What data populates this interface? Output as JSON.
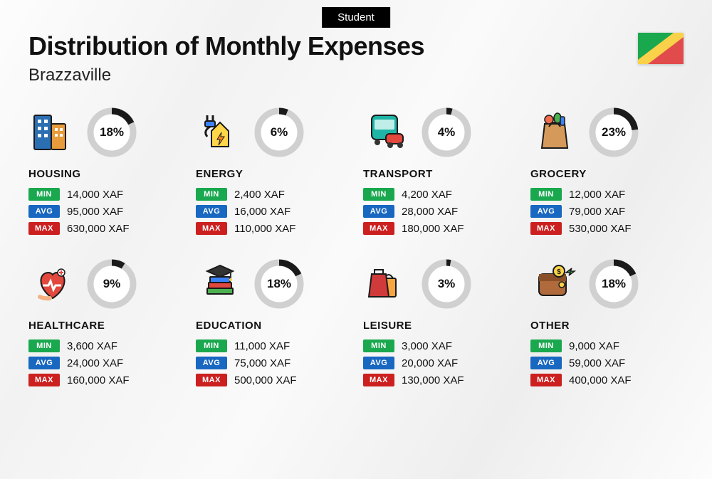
{
  "badge": "Student",
  "title": "Distribution of Monthly Expenses",
  "subtitle": "Brazzaville",
  "currency": "XAF",
  "flag": {
    "green": "#1aa84f",
    "yellow": "#f9d24a",
    "red": "#e24b4b"
  },
  "donut": {
    "radius": 30,
    "stroke_width": 9,
    "track_color": "#d0d0d0",
    "fill_color": "#1a1a1a",
    "bg": "#ffffff"
  },
  "tags": {
    "min": {
      "label": "MIN",
      "color": "#1aa84f"
    },
    "avg": {
      "label": "AVG",
      "color": "#1867c0"
    },
    "max": {
      "label": "MAX",
      "color": "#cc1f1f"
    }
  },
  "categories": [
    {
      "key": "housing",
      "name": "HOUSING",
      "pct": 18,
      "min": "14,000",
      "avg": "95,000",
      "max": "630,000",
      "icon": "buildings"
    },
    {
      "key": "energy",
      "name": "ENERGY",
      "pct": 6,
      "min": "2,400",
      "avg": "16,000",
      "max": "110,000",
      "icon": "energy"
    },
    {
      "key": "transport",
      "name": "TRANSPORT",
      "pct": 4,
      "min": "4,200",
      "avg": "28,000",
      "max": "180,000",
      "icon": "transport"
    },
    {
      "key": "grocery",
      "name": "GROCERY",
      "pct": 23,
      "min": "12,000",
      "avg": "79,000",
      "max": "530,000",
      "icon": "grocery"
    },
    {
      "key": "healthcare",
      "name": "HEALTHCARE",
      "pct": 9,
      "min": "3,600",
      "avg": "24,000",
      "max": "160,000",
      "icon": "healthcare"
    },
    {
      "key": "education",
      "name": "EDUCATION",
      "pct": 18,
      "min": "11,000",
      "avg": "75,000",
      "max": "500,000",
      "icon": "education"
    },
    {
      "key": "leisure",
      "name": "LEISURE",
      "pct": 3,
      "min": "3,000",
      "avg": "20,000",
      "max": "130,000",
      "icon": "leisure"
    },
    {
      "key": "other",
      "name": "OTHER",
      "pct": 18,
      "min": "9,000",
      "avg": "59,000",
      "max": "400,000",
      "icon": "other"
    }
  ]
}
